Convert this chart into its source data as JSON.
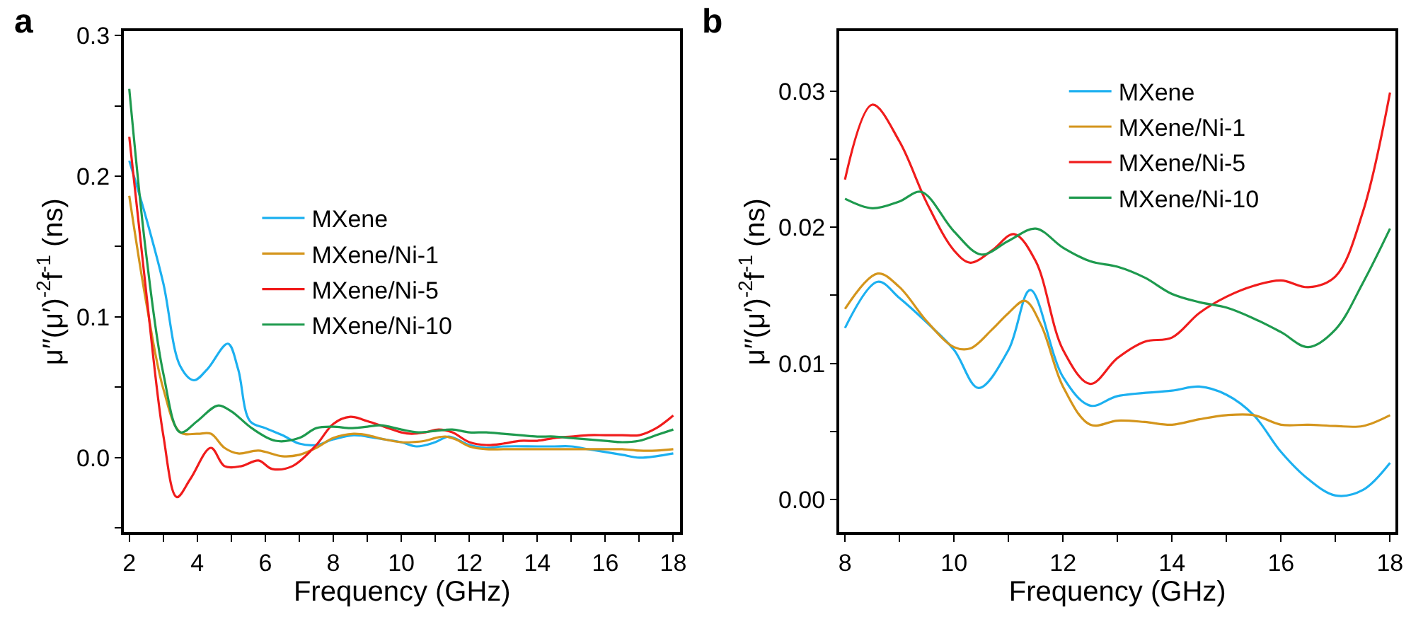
{
  "chart_data": [
    {
      "type": "line",
      "title": "a",
      "xlabel": "Frequency (GHz)",
      "ylabel": "μ′′(μ′)$^{-2}$f$^{-1}$ (ns)",
      "legend": "center",
      "xlim": [
        1.85,
        18.2
      ],
      "xticks": [
        2,
        {
          "value": 3,
          "label": null
        },
        4,
        {
          "value": 5,
          "label": null
        },
        6,
        {
          "value": 7,
          "label": null
        },
        8,
        {
          "value": 9,
          "label": null
        },
        10,
        {
          "value": 11,
          "label": null
        },
        12,
        {
          "value": 13,
          "label": null
        },
        14,
        {
          "value": 15,
          "label": null
        },
        16,
        {
          "value": 17,
          "label": null
        },
        18
      ],
      "ylim": [
        -0.053,
        0.303
      ],
      "yticks": [
        {
          "value": -0.05,
          "label": null
        },
        {
          "value": 0,
          "label": "0.0"
        },
        {
          "value": 0.05,
          "label": null
        },
        0.1,
        {
          "value": 0.15,
          "label": null
        },
        0.2,
        {
          "value": 0.25,
          "label": null
        },
        0.3
      ],
      "series": [
        {
          "name": "MXene",
          "color": "#1cb0f0",
          "x": [
            2,
            2.5,
            3,
            3.5,
            3.9,
            4.3,
            4.9,
            5.2,
            5.55,
            6,
            6.5,
            7,
            7.5,
            8,
            8.6,
            9,
            9.5,
            10,
            10.45,
            11,
            11.4,
            12,
            12.5,
            13,
            14,
            14.5,
            15,
            15.5,
            16,
            16.5,
            17,
            17.5,
            18
          ],
          "values": [
            0.211,
            0.17,
            0.124,
            0.065,
            0.055,
            0.063,
            0.081,
            0.063,
            0.026,
            0.021,
            0.016,
            0.01,
            0.009,
            0.013,
            0.016,
            0.015,
            0.013,
            0.011,
            0.008,
            0.011,
            0.015,
            0.009,
            0.007,
            0.008,
            0.008,
            0.008,
            0.008,
            0.006,
            0.004,
            0.002,
            0.0,
            0.001,
            0.003
          ]
        },
        {
          "name": "MXene/Ni-1",
          "color": "#d4951c",
          "x": [
            2,
            2.5,
            3,
            3.5,
            4,
            4.4,
            4.8,
            5.2,
            5.8,
            6.5,
            7,
            7.5,
            8,
            8.6,
            9,
            9.5,
            10,
            10.3,
            10.7,
            11,
            11.3,
            11.6,
            12,
            12.5,
            13,
            13.5,
            14,
            14.5,
            15,
            15.5,
            16,
            16.5,
            17,
            17.5,
            18
          ],
          "values": [
            0.186,
            0.11,
            0.049,
            0.018,
            0.017,
            0.017,
            0.007,
            0.003,
            0.005,
            0.001,
            0.002,
            0.007,
            0.014,
            0.017,
            0.016,
            0.013,
            0.011,
            0.011,
            0.012,
            0.014,
            0.015,
            0.013,
            0.008,
            0.006,
            0.006,
            0.006,
            0.006,
            0.006,
            0.006,
            0.006,
            0.006,
            0.006,
            0.005,
            0.005,
            0.006
          ]
        },
        {
          "name": "MXene/Ni-5",
          "color": "#f01c1c",
          "x": [
            2,
            2.5,
            3,
            3.4,
            3.8,
            4.4,
            4.8,
            5.3,
            5.8,
            6.2,
            6.8,
            7.5,
            8,
            8.5,
            9,
            9.5,
            10,
            10.3,
            10.7,
            11.1,
            11.5,
            12,
            12.5,
            13,
            13.5,
            14,
            14.5,
            15,
            15.5,
            16,
            16.5,
            17,
            17.5,
            18
          ],
          "values": [
            0.228,
            0.117,
            0.016,
            -0.028,
            -0.015,
            0.007,
            -0.006,
            -0.006,
            -0.002,
            -0.008,
            -0.006,
            0.009,
            0.024,
            0.029,
            0.026,
            0.022,
            0.018,
            0.017,
            0.018,
            0.02,
            0.018,
            0.011,
            0.009,
            0.01,
            0.012,
            0.012,
            0.014,
            0.015,
            0.016,
            0.016,
            0.016,
            0.016,
            0.021,
            0.03
          ]
        },
        {
          "name": "MXene/Ni-10",
          "color": "#1e9a4e",
          "x": [
            2,
            2.5,
            3,
            3.5,
            4,
            4.6,
            5,
            5.6,
            6.3,
            7,
            7.5,
            8,
            8.5,
            9,
            9.4,
            10,
            10.5,
            11,
            11.5,
            12,
            12.5,
            13,
            13.5,
            14,
            14.5,
            15,
            15.5,
            16,
            16.5,
            17,
            17.5,
            18
          ],
          "values": [
            0.262,
            0.144,
            0.06,
            0.018,
            0.026,
            0.037,
            0.033,
            0.021,
            0.012,
            0.014,
            0.021,
            0.022,
            0.021,
            0.022,
            0.023,
            0.02,
            0.018,
            0.019,
            0.02,
            0.018,
            0.018,
            0.017,
            0.016,
            0.015,
            0.015,
            0.014,
            0.013,
            0.012,
            0.011,
            0.012,
            0.016,
            0.02
          ]
        }
      ]
    },
    {
      "type": "line",
      "title": "b",
      "xlabel": "Frequency (GHz)",
      "ylabel": "μ′′(μ′)$^{-2}$f$^{-1}$ (ns)",
      "legend": "top right",
      "xlim": [
        7.9,
        18.1
      ],
      "xticks": [
        8,
        {
          "value": 9,
          "label": null
        },
        10,
        {
          "value": 11,
          "label": null
        },
        12,
        {
          "value": 13,
          "label": null
        },
        14,
        {
          "value": 15,
          "label": null
        },
        16,
        {
          "value": 17,
          "label": null
        },
        18
      ],
      "ylim": [
        -0.0024,
        0.0344
      ],
      "yticks": [
        {
          "value": 0,
          "label": "0.00"
        },
        {
          "value": 0.005,
          "label": null
        },
        0.01,
        {
          "value": 0.015,
          "label": null
        },
        0.02,
        {
          "value": 0.025,
          "label": null
        },
        0.03
      ],
      "series": [
        {
          "name": "MXene",
          "color": "#1cb0f0",
          "x": [
            8,
            8.6,
            9,
            9.5,
            10,
            10.45,
            11,
            11.4,
            12,
            12.5,
            13,
            14,
            14.5,
            15,
            15.5,
            16,
            16.5,
            17,
            17.5,
            18
          ],
          "values": [
            0.0126,
            0.016,
            0.0148,
            0.013,
            0.011,
            0.0082,
            0.011,
            0.0154,
            0.009,
            0.0069,
            0.0076,
            0.008,
            0.0083,
            0.0077,
            0.0062,
            0.0035,
            0.0015,
            0.0003,
            0.0007,
            0.0027
          ]
        },
        {
          "name": "MXene/Ni-1",
          "color": "#d4951c",
          "x": [
            8,
            8.6,
            9,
            9.5,
            10,
            10.3,
            10.7,
            11,
            11.3,
            11.6,
            12,
            12.5,
            13,
            13.5,
            14,
            14.5,
            15,
            15.5,
            16,
            16.5,
            17,
            17.5,
            18
          ],
          "values": [
            0.014,
            0.0166,
            0.0156,
            0.0131,
            0.0112,
            0.0111,
            0.0125,
            0.0137,
            0.0146,
            0.0128,
            0.0083,
            0.0055,
            0.0058,
            0.0057,
            0.0055,
            0.0059,
            0.0062,
            0.0062,
            0.0055,
            0.0055,
            0.0054,
            0.0054,
            0.0062
          ]
        },
        {
          "name": "MXene/Ni-5",
          "color": "#f01c1c",
          "x": [
            8,
            8.5,
            9,
            9.5,
            10,
            10.3,
            10.7,
            11.1,
            11.5,
            12,
            12.5,
            13,
            13.5,
            14,
            14.5,
            15,
            15.5,
            16,
            16.5,
            17,
            17.5,
            18
          ],
          "values": [
            0.0235,
            0.029,
            0.0263,
            0.0218,
            0.0183,
            0.0174,
            0.0183,
            0.0195,
            0.0175,
            0.011,
            0.0085,
            0.0104,
            0.0116,
            0.0119,
            0.0137,
            0.0149,
            0.0157,
            0.0161,
            0.0156,
            0.0164,
            0.0211,
            0.0299
          ]
        },
        {
          "name": "MXene/Ni-10",
          "color": "#1e9a4e",
          "x": [
            8,
            8.5,
            9,
            9.4,
            10,
            10.5,
            11,
            11.5,
            12,
            12.5,
            13,
            13.5,
            14,
            14.5,
            15,
            15.5,
            16,
            16.5,
            17,
            17.5,
            18
          ],
          "values": [
            0.0221,
            0.0214,
            0.0219,
            0.0226,
            0.0197,
            0.018,
            0.019,
            0.0199,
            0.0185,
            0.0175,
            0.0171,
            0.0163,
            0.0151,
            0.0145,
            0.0141,
            0.0133,
            0.0123,
            0.0112,
            0.0125,
            0.0159,
            0.0199
          ]
        }
      ]
    }
  ]
}
